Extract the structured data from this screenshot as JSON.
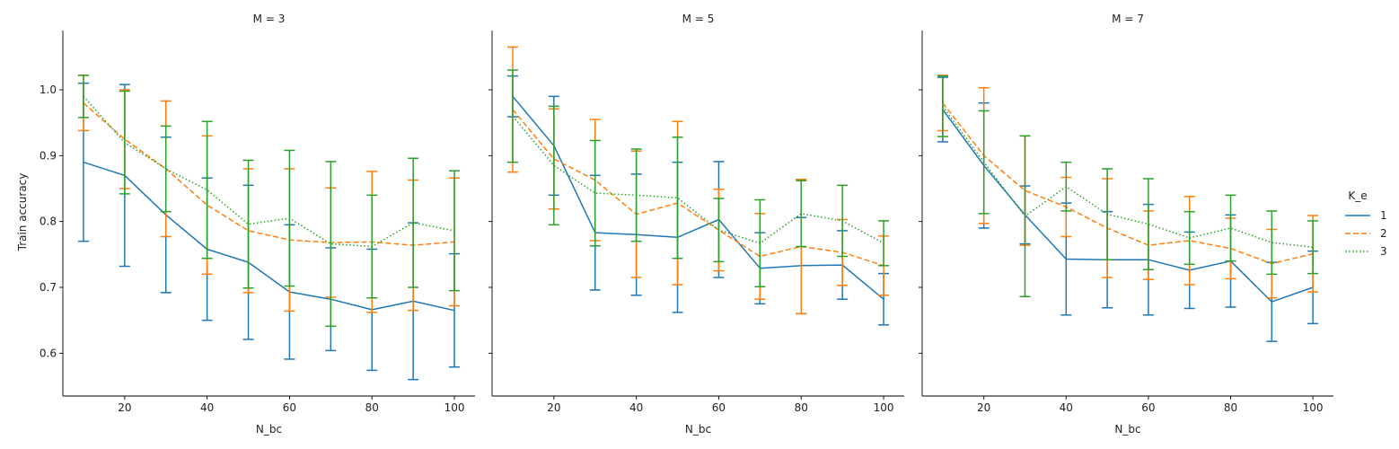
{
  "chart_data": {
    "type": "line",
    "sharey": true,
    "ylabel": "Train accuracy",
    "ylim": [
      0.535,
      1.09
    ],
    "yticks": [
      0.6,
      0.7,
      0.8,
      0.9,
      1.0
    ],
    "legend": {
      "title": "K_e",
      "placement": "right",
      "entries": [
        {
          "label": "1",
          "color": "#1f77b4",
          "dash": "solid"
        },
        {
          "label": "2",
          "color": "#ff7f0e",
          "dash": "dashed"
        },
        {
          "label": "3",
          "color": "#2ca02c",
          "dash": "dotted"
        }
      ]
    },
    "facets": [
      {
        "title": "M = 3",
        "xlabel": "N_bc",
        "xlim": [
          5,
          105
        ],
        "xticks": [
          20,
          40,
          60,
          80,
          100
        ],
        "x": [
          10,
          20,
          30,
          40,
          50,
          60,
          70,
          80,
          90,
          100
        ],
        "series": [
          {
            "name": "1",
            "color": "#1f77b4",
            "dash": "solid",
            "values": [
              0.89,
              0.87,
              0.81,
              0.758,
              0.738,
              0.693,
              0.682,
              0.666,
              0.679,
              0.665
            ],
            "err": [
              0.12,
              0.138,
              0.118,
              0.108,
              0.117,
              0.102,
              0.078,
              0.092,
              0.119,
              0.086
            ]
          },
          {
            "name": "2",
            "color": "#ff7f0e",
            "dash": "dashed",
            "values": [
              0.98,
              0.925,
              0.88,
              0.825,
              0.786,
              0.772,
              0.768,
              0.769,
              0.764,
              0.769
            ],
            "err": [
              0.042,
              0.075,
              0.103,
              0.105,
              0.094,
              0.108,
              0.083,
              0.107,
              0.099,
              0.097
            ]
          },
          {
            "name": "3",
            "color": "#2ca02c",
            "dash": "dotted",
            "values": [
              0.99,
              0.92,
              0.88,
              0.848,
              0.796,
              0.805,
              0.766,
              0.762,
              0.798,
              0.786
            ],
            "err": [
              0.032,
              0.078,
              0.065,
              0.104,
              0.097,
              0.103,
              0.125,
              0.078,
              0.098,
              0.091
            ]
          }
        ]
      },
      {
        "title": "M = 5",
        "xlabel": "N_bc",
        "xlim": [
          5,
          105
        ],
        "xticks": [
          20,
          40,
          60,
          80,
          100
        ],
        "x": [
          10,
          20,
          30,
          40,
          50,
          60,
          70,
          80,
          90,
          100
        ],
        "series": [
          {
            "name": "1",
            "color": "#1f77b4",
            "dash": "solid",
            "values": [
              0.99,
              0.915,
              0.783,
              0.78,
              0.776,
              0.803,
              0.729,
              0.733,
              0.734,
              0.682
            ],
            "err": [
              0.031,
              0.075,
              0.087,
              0.092,
              0.114,
              0.088,
              0.054,
              0.073,
              0.052,
              0.039
            ]
          },
          {
            "name": "2",
            "color": "#ff7f0e",
            "dash": "dashed",
            "values": [
              0.97,
              0.895,
              0.863,
              0.811,
              0.828,
              0.787,
              0.747,
              0.762,
              0.753,
              0.733
            ],
            "err": [
              0.095,
              0.076,
              0.092,
              0.096,
              0.124,
              0.062,
              0.065,
              0.102,
              0.05,
              0.045
            ]
          },
          {
            "name": "3",
            "color": "#2ca02c",
            "dash": "dotted",
            "values": [
              0.96,
              0.885,
              0.843,
              0.84,
              0.836,
              0.787,
              0.767,
              0.812,
              0.801,
              0.767
            ],
            "err": [
              0.07,
              0.09,
              0.08,
              0.07,
              0.092,
              0.048,
              0.066,
              0.05,
              0.054,
              0.034
            ]
          }
        ]
      },
      {
        "title": "M = 7",
        "xlabel": "N_bc",
        "xlim": [
          5,
          105
        ],
        "xticks": [
          20,
          40,
          60,
          80,
          100
        ],
        "x": [
          10,
          20,
          30,
          40,
          50,
          60,
          70,
          80,
          90,
          100
        ],
        "series": [
          {
            "name": "1",
            "color": "#1f77b4",
            "dash": "solid",
            "values": [
              0.97,
              0.885,
              0.81,
              0.743,
              0.742,
              0.742,
              0.726,
              0.74,
              0.678,
              0.7
            ],
            "err": [
              0.049,
              0.095,
              0.044,
              0.085,
              0.073,
              0.084,
              0.058,
              0.07,
              0.06,
              0.055
            ]
          },
          {
            "name": "2",
            "color": "#ff7f0e",
            "dash": "dashed",
            "values": [
              0.98,
              0.9,
              0.847,
              0.822,
              0.79,
              0.764,
              0.771,
              0.759,
              0.736,
              0.751
            ],
            "err": [
              0.042,
              0.103,
              0.083,
              0.045,
              0.075,
              0.052,
              0.067,
              0.046,
              0.052,
              0.058
            ]
          },
          {
            "name": "3",
            "color": "#2ca02c",
            "dash": "dotted",
            "values": [
              0.975,
              0.89,
              0.808,
              0.853,
              0.811,
              0.796,
              0.775,
              0.79,
              0.768,
              0.761
            ],
            "err": [
              0.046,
              0.078,
              0.122,
              0.037,
              0.069,
              0.069,
              0.04,
              0.05,
              0.048,
              0.04
            ]
          }
        ]
      }
    ]
  }
}
